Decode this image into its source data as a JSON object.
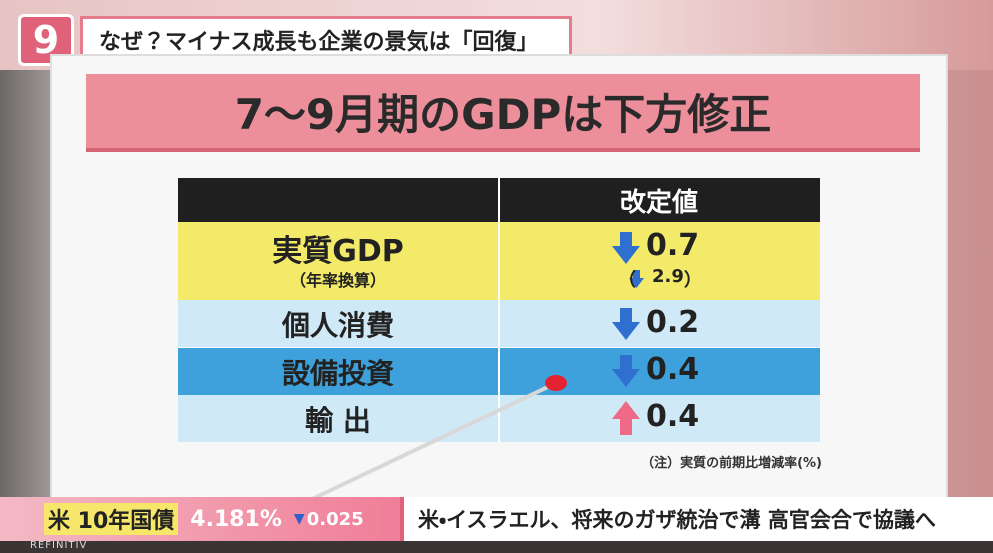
{
  "header": {
    "logo": "9",
    "title": "なぜ？マイナス成長も企業の景気は「回復」"
  },
  "board": {
    "title": "7〜9月期のGDPは下方修正",
    "table": {
      "column_header": "改定値",
      "rows": [
        {
          "label": "実質GDP",
          "sublabel": "（年率換算）",
          "value": "0.7",
          "sub_open": "（",
          "subvalue": "2.9",
          "sub_close": "）"
        },
        {
          "label": "個人消費",
          "value": "0.2"
        },
        {
          "label": "設備投資",
          "value": "0.4"
        },
        {
          "label": "輸 出",
          "value": "0.4"
        }
      ]
    },
    "note": "（注）実質の前期比増減率(%)"
  },
  "ticker": {
    "market_label": "米 10年国債",
    "market_value": "4.181%",
    "market_change": "0.025",
    "headline": "米・イスラエル、将来のガザ統治で溝 高官会合で協議へ",
    "source": "REFINITIV"
  }
}
